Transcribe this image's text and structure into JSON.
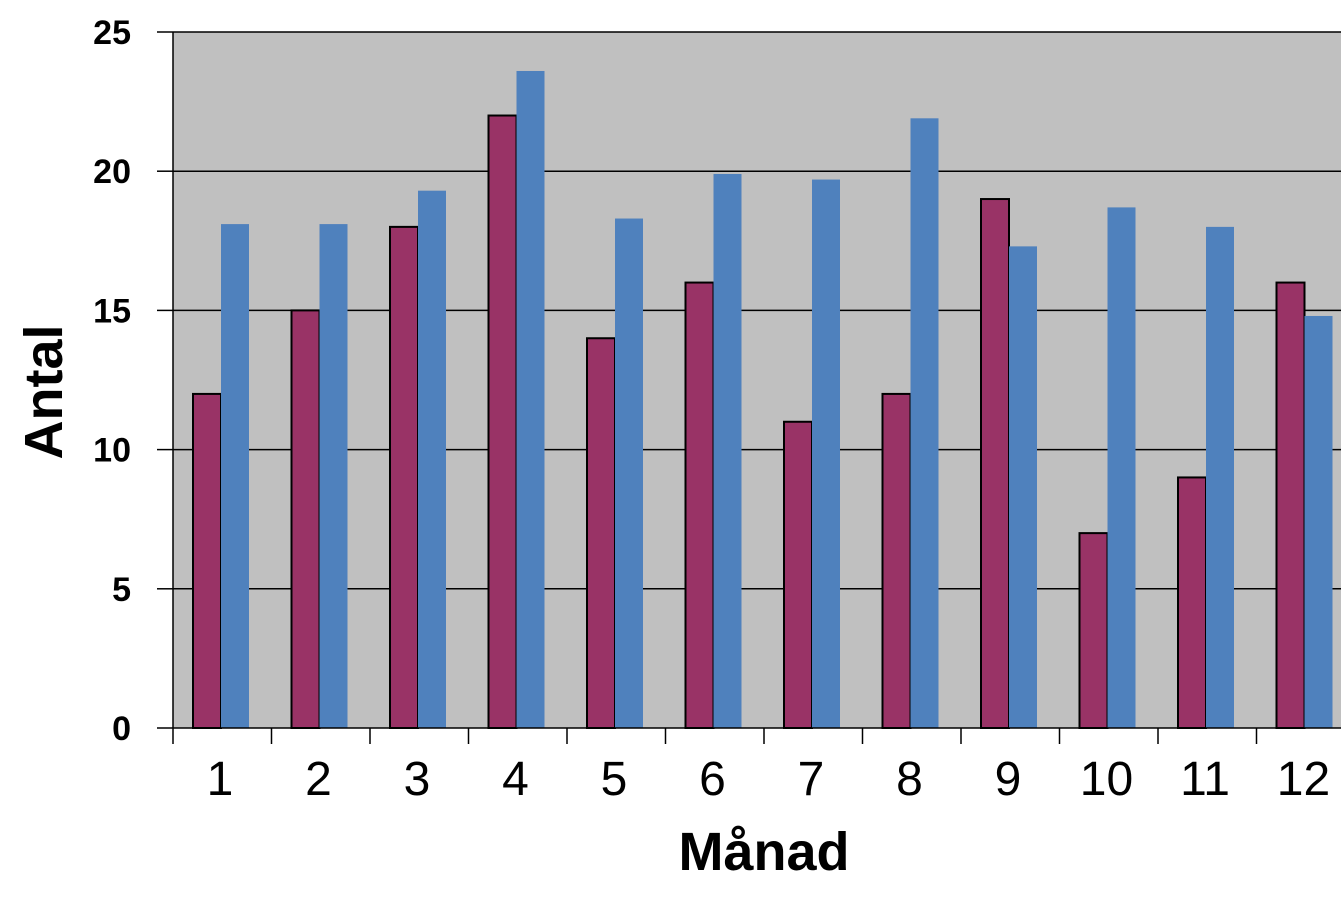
{
  "chart_data": {
    "type": "bar",
    "title": "",
    "xlabel": "Månad",
    "ylabel": "Antal",
    "ylim": [
      0,
      25
    ],
    "yticks": [
      0,
      5,
      10,
      15,
      20,
      25
    ],
    "categories": [
      "1",
      "2",
      "3",
      "4",
      "5",
      "6",
      "7",
      "8",
      "9",
      "10",
      "11",
      "12"
    ],
    "series": [
      {
        "color": "#993366",
        "values": [
          12,
          15,
          18,
          22,
          14,
          16,
          11,
          12,
          19,
          7,
          9,
          16
        ]
      },
      {
        "color": "#4F81BD",
        "values": [
          18.1,
          18.1,
          19.3,
          23.6,
          18.3,
          19.9,
          19.7,
          21.9,
          17.3,
          18.7,
          18.0,
          14.8
        ]
      }
    ],
    "grid": true,
    "plot_background": "#C0C0C0"
  }
}
